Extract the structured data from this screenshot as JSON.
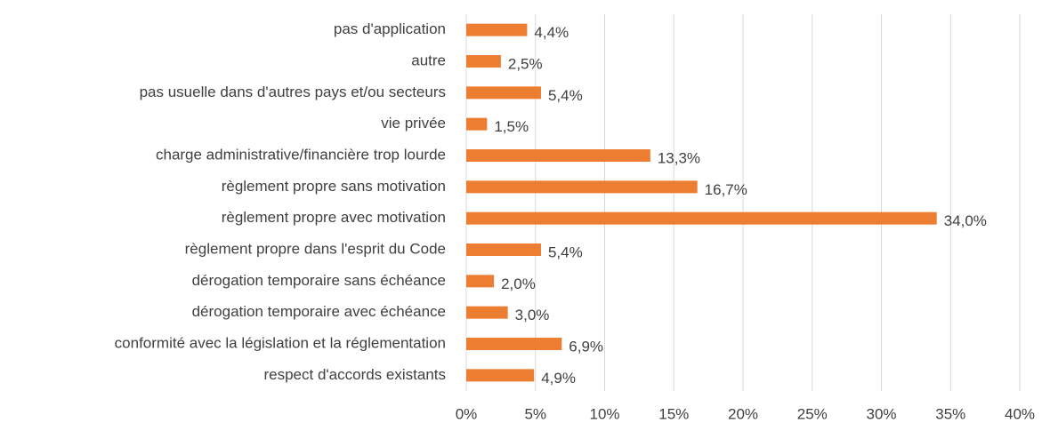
{
  "chart_data": {
    "type": "bar",
    "orientation": "horizontal",
    "categories": [
      "pas d'application",
      "autre",
      "pas usuelle dans d'autres pays et/ou secteurs",
      "vie privée",
      "charge administrative/financière trop lourde",
      "règlement propre sans motivation",
      "règlement propre avec motivation",
      "règlement propre dans l'esprit du Code",
      "dérogation temporaire sans échéance",
      "dérogation temporaire avec échéance",
      "conformité avec la législation et la réglementation",
      "respect d'accords existants"
    ],
    "values": [
      4.4,
      2.5,
      5.4,
      1.5,
      13.3,
      16.7,
      34.0,
      5.4,
      2.0,
      3.0,
      6.9,
      4.9
    ],
    "value_labels": [
      "4,4%",
      "2,5%",
      "5,4%",
      "1,5%",
      "13,3%",
      "16,7%",
      "34,0%",
      "5,4%",
      "2,0%",
      "3,0%",
      "6,9%",
      "4,9%"
    ],
    "color": "#ed7d31",
    "xlim": [
      0,
      40
    ],
    "xticks": [
      {
        "value": 0,
        "label": "0%"
      },
      {
        "value": 5,
        "label": "5%"
      },
      {
        "value": 10,
        "label": "10%"
      },
      {
        "value": 15,
        "label": "15%"
      },
      {
        "value": 20,
        "label": "20%"
      },
      {
        "value": 25,
        "label": "25%"
      },
      {
        "value": 30,
        "label": "30%"
      },
      {
        "value": 35,
        "label": "35%"
      },
      {
        "value": 40,
        "label": "40%"
      }
    ],
    "grid": true
  }
}
